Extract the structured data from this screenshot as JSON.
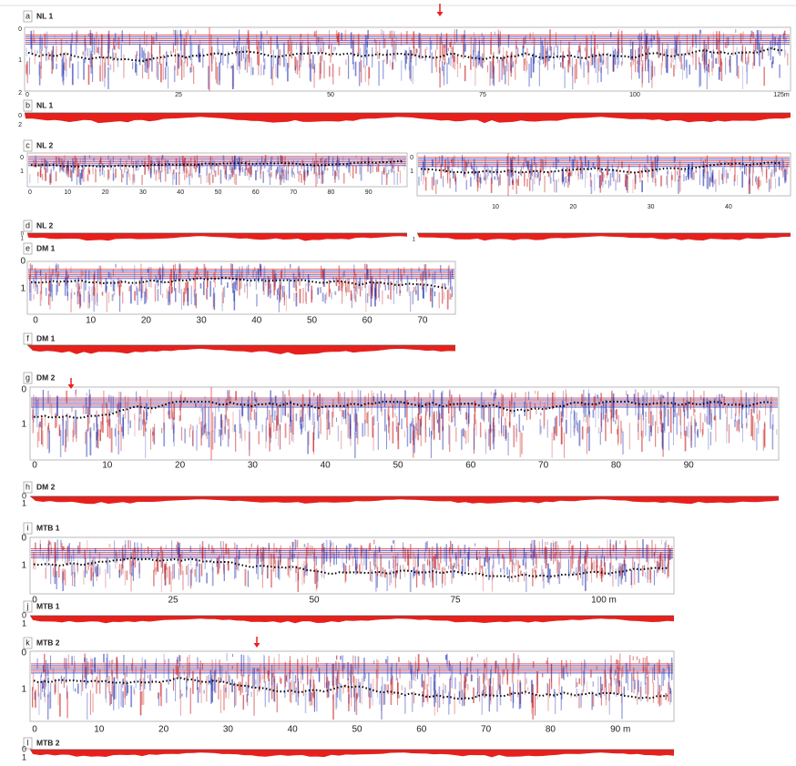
{
  "panels": [
    {
      "letter": "a",
      "title": "NL 1",
      "y_ticks": [
        "0",
        "1",
        "2"
      ],
      "x_ticks": [
        "0",
        "25",
        "50",
        "75",
        "100",
        "125m"
      ]
    },
    {
      "letter": "b",
      "title": "NL 1",
      "y_ticks": [
        "0",
        "2"
      ]
    },
    {
      "letter": "c",
      "title": "NL 2",
      "y_ticks": [
        "0",
        "1"
      ],
      "x_ticks": [
        "0",
        "10",
        "20",
        "30",
        "40",
        "50",
        "60",
        "70",
        "80",
        "90"
      ],
      "y_ticks_right": [
        "0",
        "1"
      ],
      "x_ticks_right": [
        "10",
        "20",
        "30",
        "40"
      ]
    },
    {
      "letter": "d",
      "title": "NL 2",
      "y_ticks": [
        "0",
        "1"
      ],
      "y_ticks_right": [
        "1"
      ]
    },
    {
      "letter": "e",
      "title": "DM 1",
      "y_ticks": [
        "0",
        "1"
      ],
      "x_ticks": [
        "0",
        "10",
        "20",
        "30",
        "40",
        "50",
        "60",
        "70"
      ]
    },
    {
      "letter": "f",
      "title": "DM 1"
    },
    {
      "letter": "g",
      "title": "DM 2",
      "y_ticks": [
        "0",
        "1"
      ],
      "x_ticks": [
        "0",
        "10",
        "20",
        "30",
        "40",
        "50",
        "60",
        "70",
        "80",
        "90"
      ]
    },
    {
      "letter": "h",
      "title": "DM 2",
      "y_ticks": [
        "0",
        "1"
      ]
    },
    {
      "letter": "i",
      "title": "MTB 1",
      "y_ticks": [
        "0",
        "1"
      ],
      "x_ticks": [
        "0",
        "25",
        "50",
        "75",
        "100 m"
      ]
    },
    {
      "letter": "j",
      "title": "MTB 1",
      "y_ticks": [
        "0",
        "1"
      ]
    },
    {
      "letter": "k",
      "title": "MTB 2",
      "y_ticks": [
        "0",
        "1"
      ],
      "x_ticks": [
        "0",
        "10",
        "20",
        "30",
        "40",
        "50",
        "60",
        "70",
        "80",
        "90 m"
      ]
    },
    {
      "letter": "l",
      "title": "MTB 2",
      "y_ticks": [
        "0",
        "1"
      ]
    }
  ]
}
